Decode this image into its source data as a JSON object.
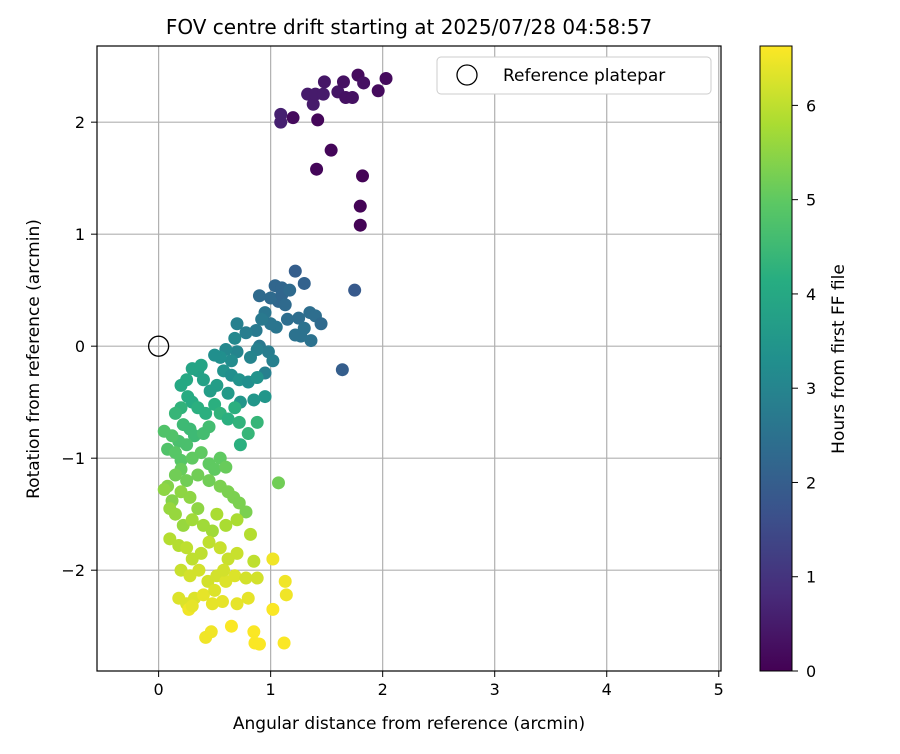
{
  "chart_data": {
    "type": "scatter",
    "title": "FOV centre drift starting at 2025/07/28 04:58:57",
    "xlabel": "Angular distance from reference (arcmin)",
    "ylabel": "Rotation from reference (arcmin)",
    "xlim": [
      -0.55,
      5.02
    ],
    "ylim": [
      -2.9,
      2.68
    ],
    "xticks": [
      "0",
      "1",
      "2",
      "3",
      "4",
      "5"
    ],
    "yticks": [
      "2",
      "1",
      "0",
      "−1",
      "−2"
    ],
    "grid": true,
    "legend": {
      "placement": "top-right",
      "label": "Reference platepar"
    },
    "reference_point": {
      "x": 0,
      "y": 0
    },
    "colorbar": {
      "label": "Hours from first FF file",
      "colormap": "viridis",
      "range": [
        0,
        6.63
      ],
      "ticks": [
        "0",
        "1",
        "2",
        "3",
        "4",
        "5",
        "6"
      ]
    },
    "series_points": [
      [
        1.8,
        1.08,
        0.05
      ],
      [
        1.8,
        1.25,
        0.05
      ],
      [
        1.82,
        1.52,
        0.05
      ],
      [
        1.41,
        1.58,
        0.1
      ],
      [
        1.54,
        1.75,
        0.1
      ],
      [
        1.42,
        2.02,
        0.1
      ],
      [
        1.2,
        2.04,
        0.2
      ],
      [
        1.09,
        2.0,
        0.6
      ],
      [
        1.09,
        2.07,
        0.6
      ],
      [
        1.33,
        2.25,
        0.5
      ],
      [
        1.38,
        2.16,
        0.5
      ],
      [
        1.4,
        2.25,
        0.5
      ],
      [
        1.47,
        2.25,
        0.5
      ],
      [
        1.48,
        2.36,
        0.4
      ],
      [
        1.6,
        2.27,
        0.4
      ],
      [
        1.65,
        2.36,
        0.3
      ],
      [
        1.67,
        2.22,
        0.3
      ],
      [
        1.73,
        2.22,
        0.3
      ],
      [
        1.78,
        2.42,
        0.2
      ],
      [
        1.83,
        2.35,
        0.3
      ],
      [
        1.96,
        2.28,
        0.2
      ],
      [
        2.03,
        2.39,
        0.2
      ],
      [
        1.75,
        0.5,
        1.9
      ],
      [
        1.64,
        -0.21,
        2.0
      ],
      [
        1.22,
        0.67,
        2.0
      ],
      [
        1.3,
        0.56,
        2.1
      ],
      [
        1.04,
        0.54,
        2.2
      ],
      [
        1.1,
        0.52,
        2.2
      ],
      [
        1.07,
        0.4,
        2.2
      ],
      [
        1.0,
        0.43,
        2.3
      ],
      [
        1.1,
        0.46,
        2.2
      ],
      [
        1.17,
        0.5,
        2.3
      ],
      [
        1.13,
        0.37,
        2.3
      ],
      [
        0.9,
        0.45,
        2.3
      ],
      [
        1.15,
        0.24,
        2.4
      ],
      [
        1.25,
        0.25,
        2.4
      ],
      [
        1.35,
        0.3,
        2.4
      ],
      [
        1.4,
        0.27,
        2.4
      ],
      [
        1.45,
        0.2,
        2.3
      ],
      [
        1.3,
        0.16,
        2.5
      ],
      [
        1.27,
        0.09,
        2.5
      ],
      [
        1.36,
        0.05,
        2.5
      ],
      [
        1.22,
        0.1,
        2.5
      ],
      [
        1.05,
        0.17,
        2.6
      ],
      [
        1.0,
        0.2,
        2.6
      ],
      [
        0.95,
        0.3,
        2.6
      ],
      [
        0.92,
        0.24,
        2.7
      ],
      [
        0.87,
        0.14,
        2.7
      ],
      [
        0.78,
        0.12,
        2.8
      ],
      [
        0.7,
        0.2,
        2.9
      ],
      [
        0.9,
        0.0,
        2.7
      ],
      [
        0.98,
        -0.05,
        2.8
      ],
      [
        1.02,
        -0.13,
        2.9
      ],
      [
        0.95,
        -0.24,
        2.9
      ],
      [
        0.88,
        -0.03,
        2.9
      ],
      [
        0.82,
        -0.1,
        3.0
      ],
      [
        0.7,
        -0.05,
        3.0
      ],
      [
        0.68,
        0.07,
        3.1
      ],
      [
        0.6,
        -0.03,
        3.1
      ],
      [
        0.65,
        -0.13,
        3.2
      ],
      [
        0.55,
        -0.1,
        3.3
      ],
      [
        0.5,
        -0.08,
        3.3
      ],
      [
        0.58,
        -0.22,
        3.4
      ],
      [
        0.65,
        -0.26,
        3.3
      ],
      [
        0.72,
        -0.3,
        3.4
      ],
      [
        0.8,
        -0.32,
        3.3
      ],
      [
        0.88,
        -0.28,
        3.4
      ],
      [
        0.95,
        -0.45,
        3.5
      ],
      [
        0.85,
        -0.48,
        3.5
      ],
      [
        0.73,
        -0.5,
        3.5
      ],
      [
        0.62,
        -0.42,
        3.6
      ],
      [
        0.52,
        -0.35,
        3.7
      ],
      [
        0.46,
        -0.4,
        3.7
      ],
      [
        0.4,
        -0.3,
        3.8
      ],
      [
        0.35,
        -0.22,
        3.8
      ],
      [
        0.3,
        -0.2,
        3.9
      ],
      [
        0.38,
        -0.17,
        3.9
      ],
      [
        0.25,
        -0.3,
        4.0
      ],
      [
        0.2,
        -0.35,
        4.0
      ],
      [
        0.26,
        -0.45,
        4.1
      ],
      [
        0.3,
        -0.5,
        4.1
      ],
      [
        0.35,
        -0.55,
        4.2
      ],
      [
        0.42,
        -0.6,
        4.2
      ],
      [
        0.5,
        -0.52,
        4.2
      ],
      [
        0.55,
        -0.6,
        4.3
      ],
      [
        0.62,
        -0.65,
        4.2
      ],
      [
        0.68,
        -0.55,
        4.2
      ],
      [
        0.72,
        -0.68,
        4.3
      ],
      [
        0.8,
        -0.78,
        4.4
      ],
      [
        0.88,
        -0.68,
        4.4
      ],
      [
        0.73,
        -0.88,
        4.2
      ],
      [
        0.2,
        -0.55,
        4.3
      ],
      [
        0.15,
        -0.6,
        4.4
      ],
      [
        0.22,
        -0.7,
        4.5
      ],
      [
        0.28,
        -0.74,
        4.5
      ],
      [
        0.32,
        -0.8,
        4.5
      ],
      [
        0.4,
        -0.78,
        4.6
      ],
      [
        0.45,
        -0.72,
        4.6
      ],
      [
        0.25,
        -0.88,
        4.7
      ],
      [
        0.18,
        -0.85,
        4.7
      ],
      [
        0.12,
        -0.8,
        4.8
      ],
      [
        0.05,
        -0.76,
        4.8
      ],
      [
        0.08,
        -0.92,
        4.8
      ],
      [
        0.15,
        -0.95,
        4.9
      ],
      [
        0.2,
        -1.02,
        4.9
      ],
      [
        0.3,
        -1.0,
        5.0
      ],
      [
        0.38,
        -0.95,
        5.0
      ],
      [
        0.45,
        -1.05,
        5.0
      ],
      [
        0.5,
        -1.1,
        5.0
      ],
      [
        0.55,
        -1.0,
        5.0
      ],
      [
        0.6,
        -1.08,
        5.1
      ],
      [
        0.2,
        -1.1,
        5.1
      ],
      [
        0.15,
        -1.15,
        5.2
      ],
      [
        0.25,
        -1.2,
        5.2
      ],
      [
        0.35,
        -1.15,
        5.2
      ],
      [
        0.45,
        -1.2,
        5.2
      ],
      [
        0.55,
        -1.25,
        5.3
      ],
      [
        0.62,
        -1.3,
        5.3
      ],
      [
        0.67,
        -1.35,
        5.3
      ],
      [
        0.72,
        -1.4,
        5.3
      ],
      [
        0.78,
        -1.48,
        5.3
      ],
      [
        0.08,
        -1.25,
        5.4
      ],
      [
        0.12,
        -1.38,
        5.4
      ],
      [
        0.2,
        -1.3,
        5.5
      ],
      [
        0.28,
        -1.35,
        5.5
      ],
      [
        0.35,
        -1.45,
        5.5
      ],
      [
        1.07,
        -1.22,
        5.2
      ],
      [
        0.05,
        -1.28,
        5.5
      ],
      [
        0.1,
        -1.45,
        5.6
      ],
      [
        0.15,
        -1.5,
        5.6
      ],
      [
        0.22,
        -1.6,
        5.6
      ],
      [
        0.3,
        -1.55,
        5.7
      ],
      [
        0.4,
        -1.6,
        5.7
      ],
      [
        0.48,
        -1.65,
        5.7
      ],
      [
        0.52,
        -1.5,
        5.8
      ],
      [
        0.6,
        -1.6,
        5.8
      ],
      [
        0.7,
        -1.55,
        5.8
      ],
      [
        0.82,
        -1.68,
        5.9
      ],
      [
        0.1,
        -1.72,
        5.9
      ],
      [
        0.18,
        -1.78,
        5.9
      ],
      [
        0.25,
        -1.8,
        6.0
      ],
      [
        0.3,
        -1.9,
        6.0
      ],
      [
        0.38,
        -1.85,
        6.0
      ],
      [
        0.45,
        -1.75,
        6.0
      ],
      [
        0.55,
        -1.8,
        6.1
      ],
      [
        0.62,
        -1.9,
        6.1
      ],
      [
        0.7,
        -1.85,
        6.1
      ],
      [
        0.85,
        -1.92,
        6.0
      ],
      [
        0.2,
        -2.0,
        6.1
      ],
      [
        0.28,
        -2.05,
        6.2
      ],
      [
        0.36,
        -2.0,
        6.2
      ],
      [
        0.44,
        -2.1,
        6.2
      ],
      [
        0.52,
        -2.05,
        6.2
      ],
      [
        0.6,
        -2.1,
        6.3
      ],
      [
        0.68,
        -2.05,
        6.3
      ],
      [
        0.78,
        -2.07,
        6.2
      ],
      [
        0.88,
        -2.07,
        6.2
      ],
      [
        0.18,
        -2.25,
        6.3
      ],
      [
        0.25,
        -2.3,
        6.3
      ],
      [
        0.32,
        -2.25,
        6.3
      ],
      [
        0.4,
        -2.22,
        6.4
      ],
      [
        0.48,
        -2.3,
        6.4
      ],
      [
        0.57,
        -2.28,
        6.4
      ],
      [
        0.7,
        -2.3,
        6.4
      ],
      [
        0.8,
        -2.25,
        6.4
      ],
      [
        1.02,
        -1.9,
        6.5
      ],
      [
        1.13,
        -2.1,
        6.5
      ],
      [
        1.14,
        -2.22,
        6.5
      ],
      [
        1.02,
        -2.35,
        6.6
      ],
      [
        0.27,
        -2.35,
        6.5
      ],
      [
        0.42,
        -2.6,
        6.5
      ],
      [
        0.47,
        -2.55,
        6.5
      ],
      [
        0.65,
        -2.5,
        6.6
      ],
      [
        0.85,
        -2.55,
        6.6
      ],
      [
        0.86,
        -2.65,
        6.6
      ],
      [
        0.9,
        -2.66,
        6.6
      ],
      [
        1.12,
        -2.65,
        6.6
      ],
      [
        0.3,
        -2.32,
        6.4
      ],
      [
        0.5,
        -2.18,
        6.3
      ],
      [
        0.58,
        -2.0,
        6.2
      ]
    ]
  }
}
